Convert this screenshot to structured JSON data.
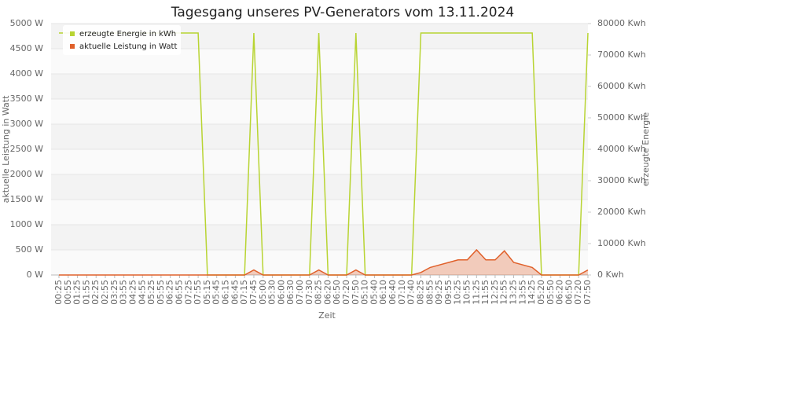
{
  "chart_data": {
    "type": "line",
    "title": "Tagesgang unseres PV-Generators vom 13.11.2024",
    "x_label": "Zeit",
    "y_label": "aktuelle Leistung in Watt",
    "y2_label": "erzeugte Energie",
    "categories": [
      "00:25",
      "00:55",
      "01:25",
      "01:55",
      "02:25",
      "02:55",
      "03:25",
      "03:55",
      "04:25",
      "04:55",
      "05:25",
      "05:55",
      "06:25",
      "06:55",
      "07:25",
      "07:55",
      "05:15",
      "05:45",
      "06:15",
      "06:45",
      "07:15",
      "07:45",
      "05:00",
      "05:30",
      "06:00",
      "06:30",
      "07:00",
      "07:30",
      "08:25",
      "06:20",
      "06:50",
      "07:20",
      "07:50",
      "05:10",
      "05:40",
      "06:10",
      "06:40",
      "07:10",
      "07:40",
      "08:25",
      "08:55",
      "09:25",
      "09:55",
      "10:25",
      "10:55",
      "11:25",
      "11:55",
      "12:25",
      "12:55",
      "13:25",
      "13:55",
      "14:25",
      "05:20",
      "05:50",
      "06:20",
      "06:50",
      "07:20",
      "07:50"
    ],
    "series": [
      {
        "name": "erzeugte Energie in kWh",
        "color": "#b8d432",
        "axis": "y2",
        "values": [
          77000,
          77000,
          77000,
          77000,
          77000,
          77000,
          77000,
          77000,
          77000,
          77000,
          77000,
          77000,
          77000,
          77000,
          77000,
          77000,
          0,
          0,
          0,
          0,
          0,
          77000,
          0,
          0,
          0,
          0,
          0,
          0,
          77000,
          0,
          0,
          0,
          77000,
          0,
          0,
          0,
          0,
          0,
          0,
          77000,
          77000,
          77000,
          77000,
          77000,
          77000,
          77000,
          77000,
          77000,
          77000,
          77000,
          77000,
          77000,
          0,
          0,
          0,
          0,
          0,
          77000
        ]
      },
      {
        "name": "aktuelle Leistung in Watt",
        "color": "#e0602a",
        "axis": "y",
        "area": true,
        "values": [
          0,
          0,
          0,
          0,
          0,
          0,
          0,
          0,
          0,
          0,
          0,
          0,
          0,
          0,
          0,
          0,
          0,
          0,
          0,
          0,
          0,
          100,
          0,
          0,
          0,
          0,
          0,
          0,
          100,
          0,
          0,
          0,
          100,
          0,
          0,
          0,
          0,
          0,
          0,
          50,
          150,
          200,
          250,
          300,
          300,
          500,
          300,
          300,
          480,
          250,
          200,
          150,
          0,
          0,
          0,
          0,
          0,
          100
        ]
      }
    ],
    "ylim": [
      0,
      5000
    ],
    "yticks": [
      {
        "value": 0,
        "label": "0 W"
      },
      {
        "value": 500,
        "label": "500 W"
      },
      {
        "value": 1000,
        "label": "1000 W"
      },
      {
        "value": 1500,
        "label": "1500 W"
      },
      {
        "value": 2000,
        "label": "2000 W"
      },
      {
        "value": 2500,
        "label": "2500 W"
      },
      {
        "value": 3000,
        "label": "3000 W"
      },
      {
        "value": 3500,
        "label": "3500 W"
      },
      {
        "value": 4000,
        "label": "4000 W"
      },
      {
        "value": 4500,
        "label": "4500 W"
      },
      {
        "value": 5000,
        "label": "5000 W"
      }
    ],
    "y2lim": [
      0,
      80000
    ],
    "y2ticks": [
      {
        "value": 0,
        "label": "0 Kwh"
      },
      {
        "value": 10000,
        "label": "10000 Kwh"
      },
      {
        "value": 20000,
        "label": "20000 Kwh"
      },
      {
        "value": 30000,
        "label": "30000 Kwh"
      },
      {
        "value": 40000,
        "label": "40000 Kwh"
      },
      {
        "value": 50000,
        "label": "50000 Kwh"
      },
      {
        "value": 60000,
        "label": "60000 Kwh"
      },
      {
        "value": 70000,
        "label": "70000 Kwh"
      },
      {
        "value": 80000,
        "label": "80000 Kwh"
      }
    ],
    "legend": "upper-left"
  }
}
